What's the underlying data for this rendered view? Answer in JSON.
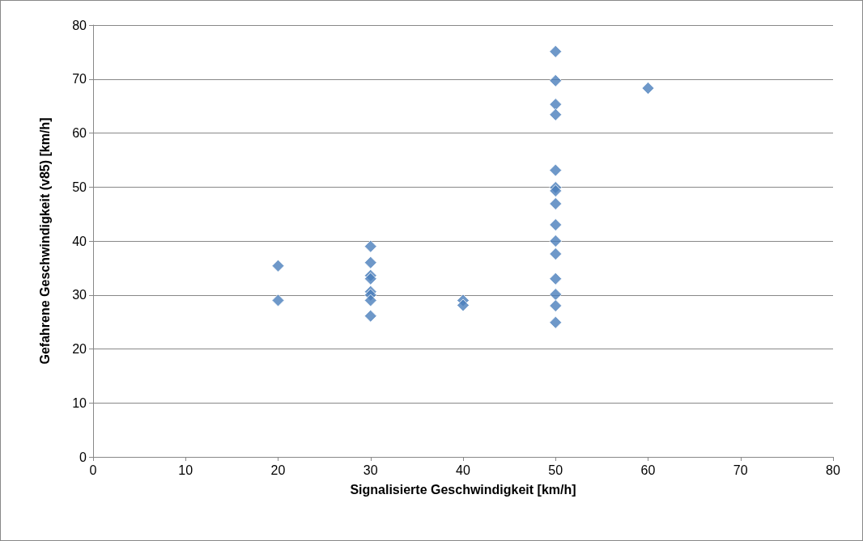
{
  "chart_data": {
    "type": "scatter",
    "xlabel": "Signalisierte Geschwindigkeit [km/h]",
    "ylabel": "Gefahrene Geschwindigkeit (v85) [km/h]",
    "x": [
      20,
      20,
      30,
      30,
      30,
      30,
      30,
      30,
      30,
      30,
      40,
      40,
      50,
      50,
      50,
      50,
      50,
      50,
      50,
      50,
      50,
      50,
      50,
      50,
      50,
      50,
      50,
      60
    ],
    "values": [
      35.4,
      29,
      39,
      36,
      33.6,
      33,
      30.6,
      30,
      29,
      26.1,
      29,
      28.1,
      75.1,
      69.7,
      65.3,
      63.4,
      53.1,
      49.9,
      49.3,
      46.9,
      43,
      40,
      37.6,
      33,
      30.1,
      28,
      24.9,
      68.3
    ],
    "color": "#4a7ebb",
    "marker": "diamond",
    "xlim": [
      0,
      80
    ],
    "xticks": [
      0,
      10,
      20,
      30,
      40,
      50,
      60,
      70,
      80
    ],
    "ylim": [
      0,
      80
    ],
    "yticks": [
      0,
      10,
      20,
      30,
      40,
      50,
      60,
      70,
      80
    ],
    "grid": "y"
  }
}
